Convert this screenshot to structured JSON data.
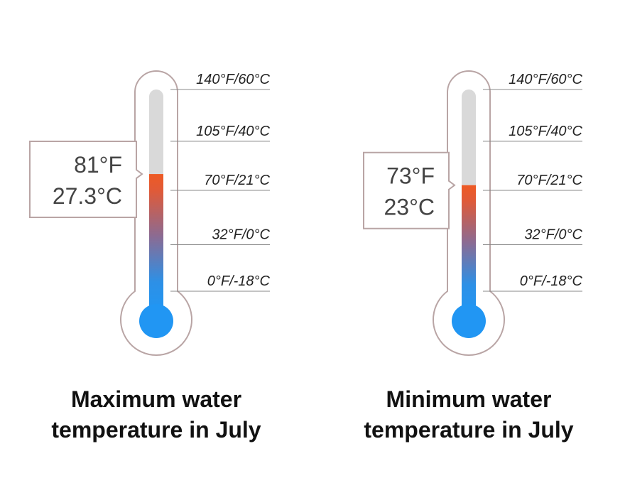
{
  "chart_data": [
    {
      "type": "thermometer",
      "title": [
        "Maximum water",
        "temperature in July"
      ],
      "value": 27.3,
      "value_labels": [
        "81°F",
        "27.3°C"
      ],
      "ylim": [
        -18,
        60
      ],
      "yticks": [
        {
          "value": 60,
          "label": "140°F/60°C"
        },
        {
          "value": 40,
          "label": "105°F/40°C"
        },
        {
          "value": 21,
          "label": "70°F/21°C"
        },
        {
          "value": 0,
          "label": "32°F/0°C"
        },
        {
          "value": -18,
          "label": "0°F/-18°C"
        }
      ]
    },
    {
      "type": "thermometer",
      "title": [
        "Minimum water",
        "temperature in July"
      ],
      "value": 23,
      "value_labels": [
        "73°F",
        "23°C"
      ],
      "ylim": [
        -18,
        60
      ],
      "yticks": [
        {
          "value": 60,
          "label": "140°F/60°C"
        },
        {
          "value": 40,
          "label": "105°F/40°C"
        },
        {
          "value": 21,
          "label": "70°F/21°C"
        },
        {
          "value": 0,
          "label": "32°F/0°C"
        },
        {
          "value": -18,
          "label": "0°F/-18°C"
        }
      ]
    }
  ]
}
